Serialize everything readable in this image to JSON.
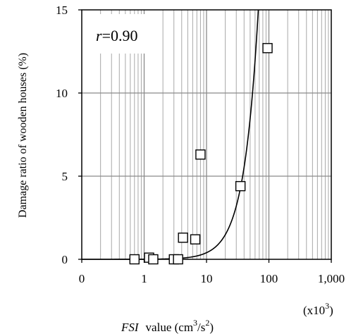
{
  "chart_data": {
    "type": "scatter",
    "xscale": "log",
    "xlim": [
      0.1,
      1000
    ],
    "ylim": [
      0,
      15
    ],
    "x_ticks": [
      0.1,
      1,
      10,
      100,
      1000
    ],
    "x_tick_labels": [
      "0",
      "1",
      "10",
      "100",
      "1,000"
    ],
    "y_ticks": [
      0,
      5,
      10,
      15
    ],
    "y_tick_labels": [
      "0",
      "5",
      "10",
      "15"
    ],
    "ylabel": "Damage ratio of wooden houses (%)",
    "xlabel_italic": "FSI",
    "xlabel_rest": "value (cm",
    "xlabel_sup1": "3",
    "xlabel_mid": "/s",
    "xlabel_sup2": "2",
    "xlabel_end": ")",
    "x_multiplier": "(x10",
    "x_multiplier_sup": "3",
    "x_multiplier_end": ")",
    "annotation_var": "r",
    "annotation_value": "=0.90",
    "grid": true,
    "points": [
      {
        "x": 0.7,
        "y": 0.0
      },
      {
        "x": 1.2,
        "y": 0.1
      },
      {
        "x": 1.4,
        "y": 0.0
      },
      {
        "x": 3.0,
        "y": 0.0
      },
      {
        "x": 3.5,
        "y": 0.0
      },
      {
        "x": 4.2,
        "y": 1.3
      },
      {
        "x": 6.6,
        "y": 1.2
      },
      {
        "x": 8.0,
        "y": 6.3
      },
      {
        "x": 35,
        "y": 4.4
      },
      {
        "x": 95,
        "y": 12.7
      }
    ],
    "fit_curve": {
      "type": "power",
      "a": 0.005,
      "b": 1.9
    }
  }
}
